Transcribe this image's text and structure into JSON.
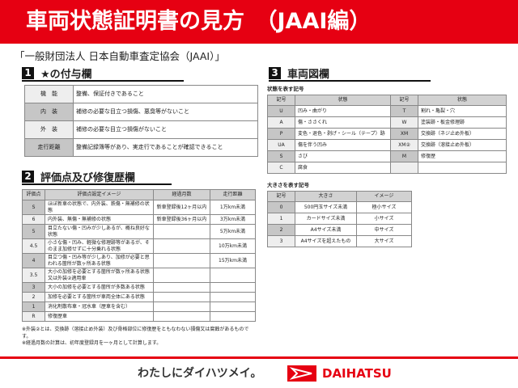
{
  "title": "車両状態証明書の見方　（JAAI編）",
  "organization": "「一般財団法人 日本自動車査定協会（JAAI）」",
  "section1": {
    "number": "1",
    "heading": "★の付与欄",
    "rows": [
      [
        "機　能",
        "整備、保証付きであること"
      ],
      [
        "内　装",
        "補修の必要な目立つ損傷、悪臭等がないこと"
      ],
      [
        "外　装",
        "補修の必要な目立つ損傷がないこと"
      ],
      [
        "走行距離",
        "整備記録簿等があり、実走行であることが確認できること"
      ]
    ]
  },
  "section2": {
    "number": "2",
    "heading": "評価点及び修復歴欄",
    "headers": [
      "評価点",
      "評価点設定イメージ",
      "経過月数",
      "走行距離"
    ],
    "rows": [
      [
        "S",
        "ほぼ新車の状態で、内外装、鉄傷・無補修の状態",
        "新車登録後12ヶ月以内",
        "1万km未満"
      ],
      [
        "6",
        "内外装、無傷・無補修の状態",
        "新車登録後36ヶ月以内",
        "3万km未満"
      ],
      [
        "5",
        "目立たない傷・凹みが少しあるが、概ね良好な状態",
        "",
        "5万km未満"
      ],
      [
        "4.5",
        "小さな傷・凹み、軽微な修理跡等があるが、そのまま加修せずに十分乗れる状態",
        "",
        "10万km未満"
      ],
      [
        "4",
        "目立つ傷・凹み等が少しあり、加修が必要と思われる箇所が数ヶ所ある状態",
        "",
        "15万km未満"
      ],
      [
        "3.5",
        "大小の加修を必要とする箇所が数ヶ所ある状態又は外装②適用車",
        "",
        ""
      ],
      [
        "3",
        "大小の加修を必要とする箇所が多数ある状態",
        "",
        ""
      ],
      [
        "2",
        "加修を必要とする箇所が車両全体にある状態",
        "",
        ""
      ],
      [
        "1",
        "消化剤散布車・冠水車（歴車を含む）",
        "",
        ""
      ],
      [
        "R",
        "修復歴車",
        "",
        ""
      ]
    ],
    "notes": [
      "※外装②とは、交換跡（溶接止め外装）及び骨格部位に修復歴をともなわない損傷又は腐蝕があるものです。",
      "※経過月数の計算は、初年度登録月を一ヶ月として計算します。"
    ]
  },
  "section3": {
    "number": "3",
    "heading": "車両図欄",
    "state_title": "状態を表す記号",
    "state_headers": [
      "記号",
      "状態",
      "記号",
      "状態"
    ],
    "state_rows": [
      [
        "U",
        "凹み・曲がり",
        "T",
        "割れ・亀裂・穴"
      ],
      [
        "A",
        "傷・ささくれ",
        "W",
        "塗装跡・板金修理跡"
      ],
      [
        "P",
        "変色・退色・剥げ・シール（テープ）跡",
        "XM",
        "交換跡（ネジ止め外板）"
      ],
      [
        "UA",
        "傷を伴う凹み",
        "XM②",
        "交換跡（溶接止め外板）"
      ],
      [
        "S",
        "さび",
        "M",
        "修復歴"
      ],
      [
        "C",
        "腐食",
        "",
        ""
      ]
    ],
    "size_title": "大きさを表す記号",
    "size_headers": [
      "記号",
      "大きさ",
      "イメージ"
    ],
    "size_rows": [
      [
        "0",
        "500円玉サイズ未満",
        "極小サイズ"
      ],
      [
        "1",
        "カードサイズ未満",
        "小サイズ"
      ],
      [
        "2",
        "A4サイズ未満",
        "中サイズ"
      ],
      [
        "3",
        "A4サイズを超えたもの",
        "大サイズ"
      ]
    ]
  },
  "footer": {
    "slogan": "わたしにダイハツメイ。",
    "brand": "DAIHATSU"
  },
  "colors": {
    "brand_red": "#e60012"
  }
}
